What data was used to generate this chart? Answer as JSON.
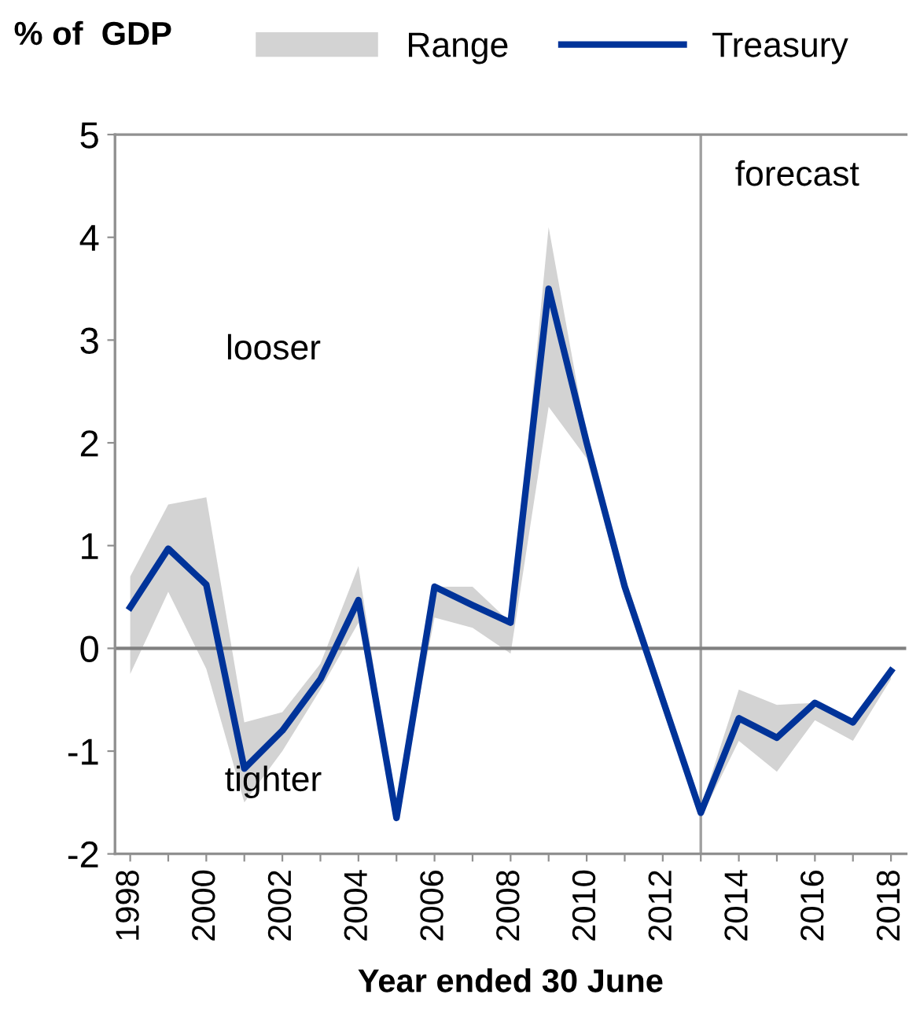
{
  "chart_data": {
    "type": "line",
    "ylabel": "% of  GDP",
    "xlabel": "Year ended 30 June",
    "x": [
      1998,
      1999,
      2000,
      2001,
      2002,
      2003,
      2004,
      2005,
      2006,
      2007,
      2008,
      2009,
      2010,
      2011,
      2012,
      2013,
      2014,
      2015,
      2016,
      2017,
      2018
    ],
    "series": [
      {
        "name": "Range",
        "type": "area",
        "color": "#d3d3d3",
        "lower": [
          -0.25,
          0.55,
          -0.2,
          -1.5,
          -1.0,
          -0.4,
          0.25,
          -1.65,
          0.3,
          0.2,
          -0.05,
          2.35,
          1.85,
          0.5,
          -0.6,
          -1.65,
          -0.9,
          -1.2,
          -0.7,
          -0.9,
          -0.3
        ],
        "values": [
          null,
          null,
          null,
          null,
          null,
          null,
          null,
          null,
          null,
          null,
          null,
          null,
          null,
          null,
          null,
          null,
          null,
          null,
          null,
          null,
          null
        ],
        "upper": [
          0.7,
          1.4,
          1.47,
          -0.72,
          -0.62,
          -0.15,
          0.8,
          -1.65,
          0.6,
          0.6,
          0.25,
          4.1,
          2.05,
          0.7,
          -0.4,
          -1.55,
          -0.4,
          -0.55,
          -0.53,
          -0.7,
          -0.18
        ]
      },
      {
        "name": "Treasury",
        "color": "#003399",
        "values": [
          0.4,
          0.97,
          0.62,
          -1.17,
          -0.8,
          -0.3,
          0.47,
          -1.65,
          0.6,
          0.42,
          0.25,
          3.5,
          2.0,
          0.6,
          -0.5,
          -1.6,
          -0.68,
          -0.87,
          -0.53,
          -0.72,
          -0.22
        ]
      }
    ],
    "xlim": [
      1997.6,
      2018.4
    ],
    "xticks": [
      1998,
      {
        "value": 1999,
        "label": null
      },
      2000,
      {
        "value": 2001,
        "label": null
      },
      2002,
      {
        "value": 2003,
        "label": null
      },
      2004,
      {
        "value": 2005,
        "label": null
      },
      2006,
      {
        "value": 2007,
        "label": null
      },
      2008,
      {
        "value": 2009,
        "label": null
      },
      2010,
      {
        "value": 2011,
        "label": null
      },
      2012,
      {
        "value": 2013,
        "label": null
      },
      2014,
      {
        "value": 2015,
        "label": null
      },
      2016,
      {
        "value": 2017,
        "label": null
      },
      2018
    ],
    "ylim": [
      -2,
      5
    ],
    "yticks": [
      {
        "value": -2,
        "label": "-2"
      },
      {
        "value": -1,
        "label": "-1"
      },
      0,
      1,
      2,
      3,
      4,
      5
    ],
    "ref_lines": [
      {
        "axis": "x",
        "value": 2013,
        "label": "forecast",
        "color": "#a0a0a0"
      },
      {
        "axis": "y",
        "value": 0,
        "label": null,
        "color": "#808080"
      }
    ],
    "annotations": [
      "looser",
      "tighter"
    ],
    "legend": "top",
    "grid": false,
    "marker": "none",
    "line_style": "solid"
  }
}
